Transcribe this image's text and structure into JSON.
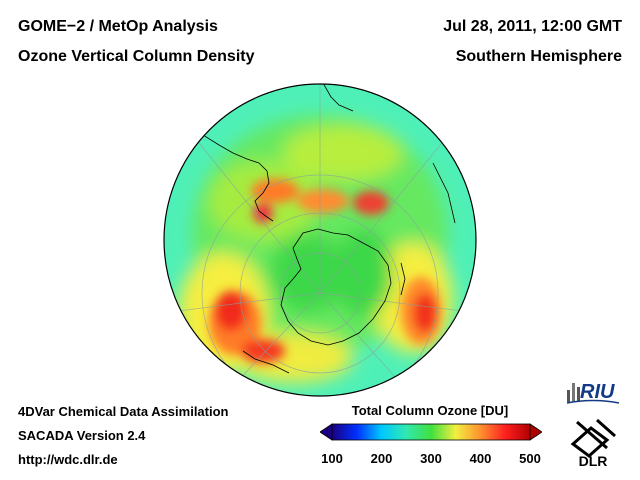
{
  "header": {
    "title_left": "GOME−2 / MetOp Analysis",
    "subtitle_left": "Ozone Vertical Column Density",
    "title_right": "Jul 28, 2011, 12:00 GMT",
    "subtitle_right": "Southern Hemisphere"
  },
  "footer": {
    "line1": "4DVar Chemical Data Assimilation",
    "line2": "SACADA Version 2.4",
    "line3": "http://wdc.dlr.de"
  },
  "colorbar": {
    "title": "Total Column Ozone [DU]",
    "min": 100,
    "max": 500,
    "ticks": [
      "100",
      "200",
      "300",
      "400",
      "500"
    ],
    "colors": [
      "#1a0080",
      "#0030ff",
      "#00c8ff",
      "#30e8b0",
      "#40e040",
      "#f0f040",
      "#ff9030",
      "#ff2020",
      "#b00000"
    ]
  },
  "logos": {
    "riu": "RIU",
    "dlr": "DLR"
  },
  "map": {
    "projection": "orthographic-south-pole",
    "hemisphere": "Southern Hemisphere",
    "ocean_base_color": "#55ea8c"
  }
}
